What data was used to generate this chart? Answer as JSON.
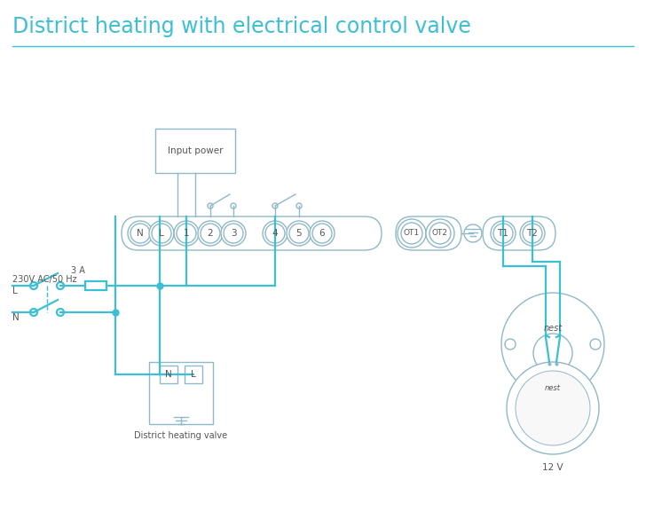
{
  "title": "District heating with electrical control valve",
  "title_color": "#3bbfd4",
  "bg_color": "#ffffff",
  "wire_color": "#3bbfd4",
  "outline_color": "#8fb8c8",
  "text_color": "#555555",
  "terminal_labels": [
    "N",
    "L",
    "1",
    "2",
    "3",
    "4",
    "5",
    "6"
  ],
  "ot_labels": [
    "OT1",
    "OT2"
  ],
  "t_labels": [
    "T1",
    "T2"
  ],
  "label_230v": "230V AC/50 Hz",
  "label_L": "L",
  "label_N": "N",
  "label_3A": "3 A",
  "label_input_power": "Input power",
  "label_district": "District heating valve",
  "label_nest": "nest",
  "label_12v": "12 V",
  "label_NL_N": "N",
  "label_NL_L": "L"
}
